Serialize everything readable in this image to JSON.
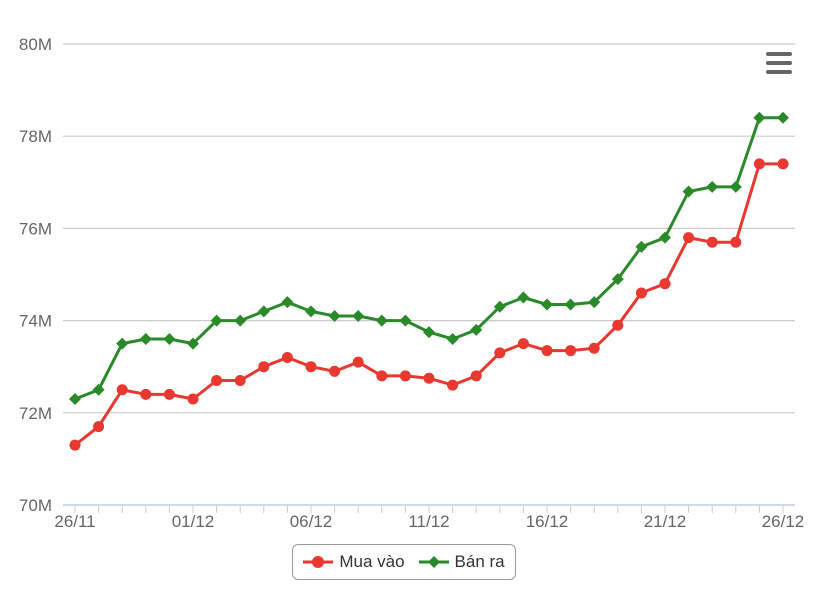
{
  "chart_data": {
    "type": "line",
    "title": "",
    "xlabel": "",
    "ylabel": "",
    "ylim": [
      70,
      80
    ],
    "y_ticks": [
      70,
      72,
      74,
      76,
      78,
      80
    ],
    "y_tick_labels": [
      "70M",
      "72M",
      "74M",
      "76M",
      "78M",
      "80M"
    ],
    "x_tick_labels": [
      "26/11",
      "01/12",
      "06/12",
      "11/12",
      "16/12",
      "21/12",
      "26/12"
    ],
    "x_tick_indices": [
      0,
      5,
      10,
      15,
      20,
      25,
      30
    ],
    "x": [
      "26/11",
      "27/11",
      "28/11",
      "29/11",
      "30/11",
      "01/12",
      "02/12",
      "03/12",
      "04/12",
      "05/12",
      "06/12",
      "07/12",
      "08/12",
      "09/12",
      "10/12",
      "11/12",
      "12/12",
      "13/12",
      "14/12",
      "15/12",
      "16/12",
      "17/12",
      "18/12",
      "19/12",
      "20/12",
      "21/12",
      "22/12",
      "23/12",
      "24/12",
      "25/12",
      "26/12"
    ],
    "grid": true,
    "legend_position": "bottom-center",
    "series": [
      {
        "name": "Mua vào",
        "color": "#e8382f",
        "marker": "circle",
        "points": [
          [
            0,
            71.3
          ],
          [
            1,
            71.7
          ],
          [
            2,
            72.5
          ],
          [
            3,
            72.4
          ],
          [
            4,
            72.4
          ],
          [
            5,
            72.3
          ],
          [
            6,
            72.7
          ],
          [
            7,
            72.7
          ],
          [
            8,
            73.0
          ],
          [
            9,
            73.2
          ],
          [
            10,
            73.0
          ],
          [
            11,
            72.9
          ],
          [
            12,
            73.1
          ],
          [
            13,
            72.8
          ],
          [
            14,
            72.8
          ],
          [
            15,
            72.75
          ],
          [
            16,
            72.6
          ],
          [
            17,
            72.8
          ],
          [
            18,
            73.3
          ],
          [
            19,
            73.5
          ],
          [
            20,
            73.35
          ],
          [
            21,
            73.35
          ],
          [
            22,
            73.4
          ],
          [
            23,
            73.9
          ],
          [
            24,
            74.6
          ],
          [
            25,
            74.8
          ],
          [
            26,
            75.8
          ],
          [
            27,
            75.7
          ],
          [
            28,
            75.7
          ],
          [
            29,
            77.4
          ],
          [
            30,
            77.4
          ]
        ]
      },
      {
        "name": "Bán ra",
        "color": "#2a8a2a",
        "marker": "diamond",
        "points": [
          [
            0,
            72.3
          ],
          [
            1,
            72.5
          ],
          [
            2,
            73.5
          ],
          [
            3,
            73.6
          ],
          [
            4,
            73.6
          ],
          [
            5,
            73.5
          ],
          [
            6,
            74.0
          ],
          [
            7,
            74.0
          ],
          [
            8,
            74.2
          ],
          [
            9,
            74.4
          ],
          [
            10,
            74.2
          ],
          [
            11,
            74.1
          ],
          [
            12,
            74.1
          ],
          [
            13,
            74.0
          ],
          [
            14,
            74.0
          ],
          [
            15,
            73.75
          ],
          [
            16,
            73.6
          ],
          [
            17,
            73.8
          ],
          [
            18,
            74.3
          ],
          [
            19,
            74.5
          ],
          [
            20,
            74.35
          ],
          [
            21,
            74.35
          ],
          [
            22,
            74.4
          ],
          [
            23,
            74.9
          ],
          [
            24,
            75.6
          ],
          [
            25,
            75.8
          ],
          [
            26,
            76.8
          ],
          [
            27,
            76.9
          ],
          [
            28,
            76.9
          ],
          [
            29,
            78.4
          ],
          [
            30,
            78.4
          ]
        ]
      }
    ]
  },
  "menu": {
    "icon": "hamburger-menu-icon"
  }
}
